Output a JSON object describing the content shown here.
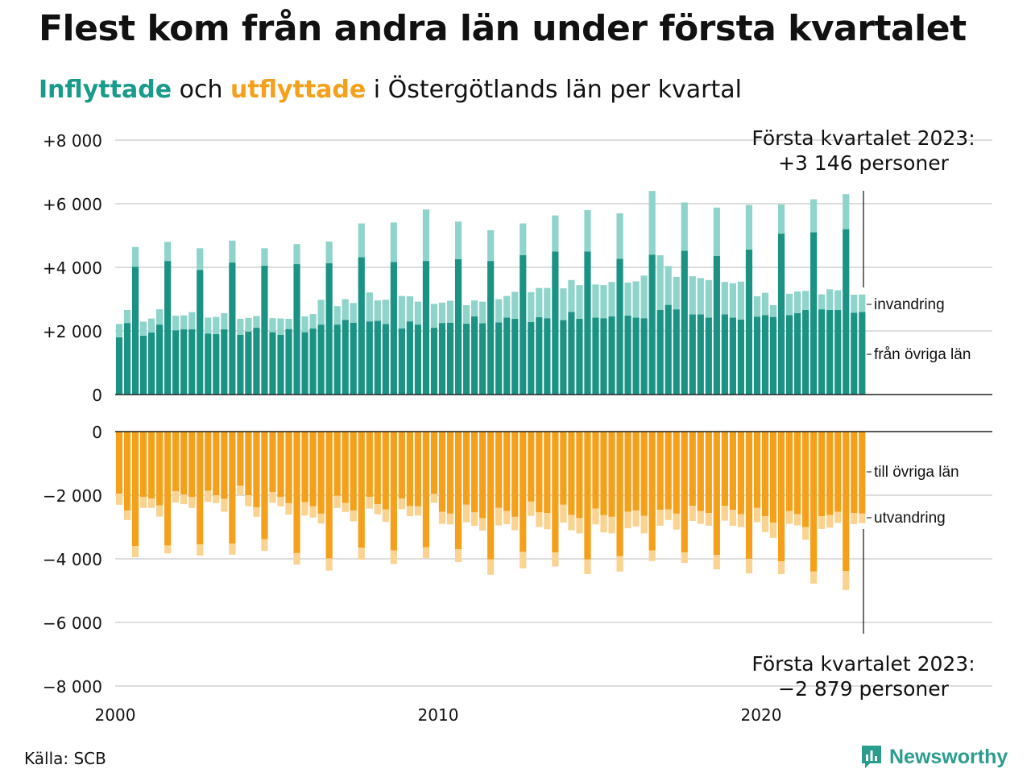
{
  "title": "Flest kom från andra län under första kvartalet",
  "subtitle": {
    "in_word": "Inflyttade",
    "middle": " och ",
    "out_word": "utflyttade",
    "rest": " i Östergötlands län per kvartal"
  },
  "source": "Källa: SCB",
  "brand": "Newsworthy",
  "colors": {
    "in_domestic": "#1a9385",
    "in_immigration": "#8fd4cb",
    "out_domestic": "#f5a01a",
    "out_emigration": "#fad391",
    "grid": "#dddddd",
    "axis": "#222222",
    "brand": "#2a9d8f"
  },
  "chart_data": {
    "type": "bar",
    "stacked": true,
    "quarters_start": "2000 Q1",
    "x_ticks": [
      "2000",
      "2010",
      "2020"
    ],
    "top_panel": {
      "yticks": [
        "+8 000",
        "+6 000",
        "+4 000",
        "+2 000",
        "0"
      ],
      "ylim": [
        0,
        8000
      ],
      "series": [
        {
          "name": "från övriga län",
          "values": [
            1800,
            2250,
            4020,
            1850,
            1950,
            2200,
            4200,
            2020,
            2050,
            2050,
            3920,
            1920,
            1900,
            2050,
            4150,
            1880,
            1980,
            2100,
            4050,
            1960,
            1880,
            2060,
            4100,
            1960,
            2080,
            2200,
            4130,
            2200,
            2350,
            2260,
            4320,
            2300,
            2320,
            2220,
            4170,
            2080,
            2300,
            2200,
            4200,
            2100,
            2250,
            2260,
            4260,
            2230,
            2460,
            2240,
            4200,
            2270,
            2420,
            2380,
            4380,
            2280,
            2430,
            2400,
            4500,
            2340,
            2600,
            2380,
            4500,
            2420,
            2400,
            2460,
            4270,
            2480,
            2420,
            2400,
            4400,
            2660,
            2820,
            2680,
            4520,
            2520,
            2520,
            2420,
            4360,
            2520,
            2420,
            2360,
            4560,
            2450,
            2500,
            2440,
            5060,
            2500,
            2560,
            2660,
            5100,
            2680,
            2660,
            2660,
            5200,
            2570,
            2600
          ],
          "color": "#1a9385"
        },
        {
          "name": "invandring",
          "values": [
            420,
            410,
            620,
            440,
            440,
            480,
            600,
            460,
            440,
            540,
            680,
            500,
            540,
            510,
            690,
            500,
            430,
            370,
            550,
            440,
            510,
            320,
            630,
            500,
            450,
            780,
            680,
            580,
            650,
            620,
            1060,
            910,
            640,
            760,
            1240,
            1020,
            790,
            720,
            1620,
            750,
            640,
            690,
            1180,
            580,
            500,
            680,
            970,
            730,
            680,
            850,
            1000,
            940,
            920,
            950,
            1130,
            1000,
            1000,
            1060,
            1300,
            1040,
            1040,
            1080,
            1430,
            1040,
            1140,
            1340,
            2000,
            1720,
            1220,
            1020,
            1520,
            1200,
            1140,
            1180,
            1520,
            1020,
            1080,
            1190,
            1400,
            640,
            700,
            370,
            920,
            670,
            680,
            600,
            1040,
            470,
            650,
            620,
            1100,
            570,
            546
          ],
          "color": "#8fd4cb"
        }
      ]
    },
    "bottom_panel": {
      "yticks": [
        "0",
        "−2 000",
        "−4 000",
        "−6 000",
        "−8 000"
      ],
      "ylim": [
        -8000,
        0
      ],
      "series": [
        {
          "name": "till övriga län",
          "values": [
            -1950,
            -2480,
            -3600,
            -2050,
            -2100,
            -2320,
            -3580,
            -1880,
            -1980,
            -2050,
            -3550,
            -1860,
            -2000,
            -2120,
            -3520,
            -1700,
            -2000,
            -2380,
            -3380,
            -1900,
            -2050,
            -2250,
            -3820,
            -2220,
            -2350,
            -2580,
            -3990,
            -2020,
            -2240,
            -2480,
            -3650,
            -2050,
            -2280,
            -2450,
            -3740,
            -2100,
            -2340,
            -2350,
            -3640,
            -1960,
            -2520,
            -2580,
            -3700,
            -2300,
            -2540,
            -2720,
            -4020,
            -2400,
            -2500,
            -2680,
            -3780,
            -2200,
            -2540,
            -2560,
            -3800,
            -2300,
            -2620,
            -2720,
            -4020,
            -2420,
            -2630,
            -2680,
            -3920,
            -2520,
            -2480,
            -2650,
            -3740,
            -2460,
            -2450,
            -2580,
            -3800,
            -2330,
            -2500,
            -2560,
            -3880,
            -2330,
            -2460,
            -2600,
            -4000,
            -2400,
            -2660,
            -2860,
            -4080,
            -2500,
            -2600,
            -3000,
            -4400,
            -2660,
            -2620,
            -2520,
            -4380,
            -2560,
            -2579
          ],
          "color": "#f5a01a"
        },
        {
          "name": "utvandring",
          "values": [
            -350,
            -300,
            -350,
            -350,
            -300,
            -350,
            -250,
            -350,
            -300,
            -350,
            -350,
            -350,
            -250,
            -400,
            -350,
            -300,
            -350,
            -300,
            -370,
            -340,
            -300,
            -360,
            -360,
            -420,
            -350,
            -310,
            -380,
            -380,
            -290,
            -340,
            -380,
            -370,
            -320,
            -390,
            -420,
            -340,
            -320,
            -290,
            -340,
            -280,
            -380,
            -340,
            -400,
            -550,
            -420,
            -390,
            -480,
            -550,
            -410,
            -420,
            -520,
            -450,
            -460,
            -510,
            -440,
            -560,
            -480,
            -480,
            -460,
            -500,
            -540,
            -520,
            -480,
            -520,
            -500,
            -550,
            -330,
            -500,
            -330,
            -500,
            -330,
            -480,
            -400,
            -400,
            -450,
            -470,
            -500,
            -400,
            -460,
            -450,
            -500,
            -480,
            -400,
            -400,
            -350,
            -400,
            -380,
            -400,
            -400,
            -350,
            -600,
            -350,
            -300
          ],
          "color": "#fad391"
        }
      ]
    },
    "labels": {
      "invandring": "invandring",
      "from_other": "från övriga län",
      "to_other": "till övriga län",
      "utvandring": "utvandring"
    },
    "annotations": {
      "top_line1": "Första kvartalet 2023:",
      "top_line2": "+3 146 personer",
      "bottom_line1": "Första kvartalet 2023:",
      "bottom_line2": "−2 879 personer"
    }
  }
}
